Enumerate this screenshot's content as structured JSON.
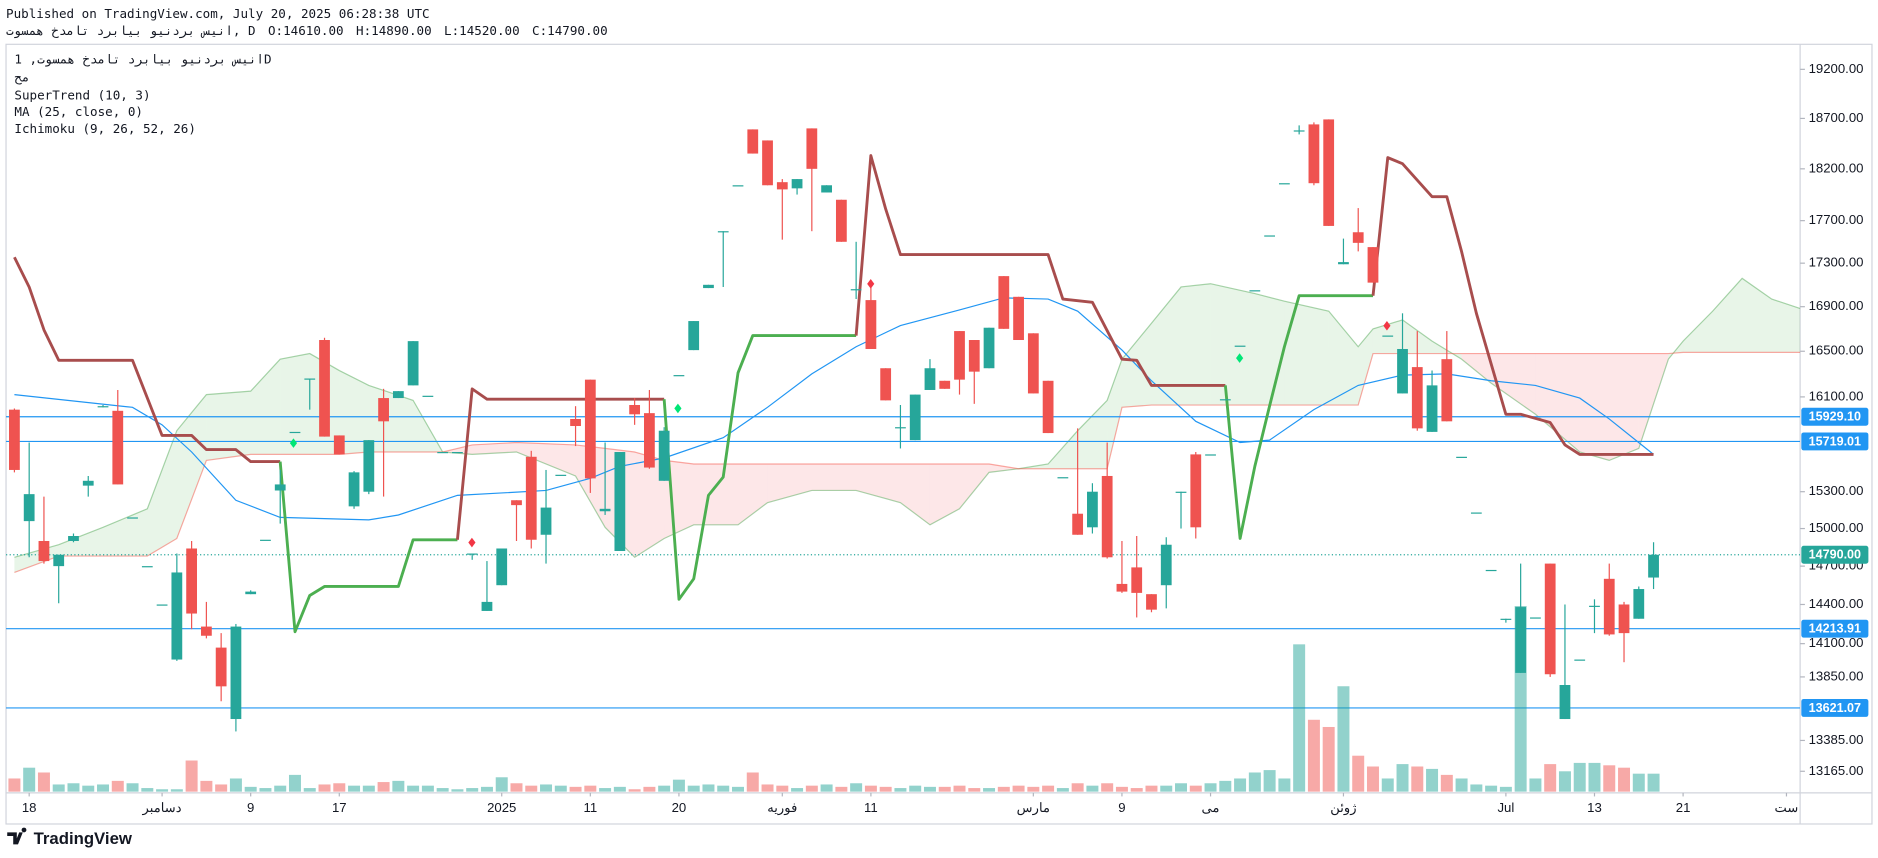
{
  "header": {
    "published": "Published on TradingView.com, July 20, 2025 06:28:38 UTC",
    "symbol_line": "انیس بردنیو بیابرد تامدخ همسوت, D",
    "ohlc": [
      "O:14610.00",
      "H:14890.00",
      "L:14520.00",
      "C:14790.00"
    ]
  },
  "legend": {
    "symbol": "انیس بردنیو بیابرد تامدخ همسوت, 1D",
    "exchange": "مح"
  },
  "footer": {
    "logo": "TradingView"
  },
  "chart_data": {
    "type": "candlestick",
    "log": true,
    "grid": false,
    "up_color": "#26a69a",
    "down_color": "#ef5350",
    "ylim": [
      13030,
      19460
    ],
    "yticks": [
      {
        "value": 19200,
        "label": "19200.00"
      },
      {
        "value": 18700,
        "label": "18700.00"
      },
      {
        "value": 18200,
        "label": "18200.00"
      },
      {
        "value": 17700,
        "label": "17700.00"
      },
      {
        "value": 17300,
        "label": "17300.00"
      },
      {
        "value": 16900,
        "label": "16900.00"
      },
      {
        "value": 16500,
        "label": "16500.00"
      },
      {
        "value": 16100,
        "label": "16100.00"
      },
      {
        "value": 15300,
        "label": "15300.00"
      },
      {
        "value": 15000,
        "label": "15000.00"
      },
      {
        "value": 14700,
        "label": "14700.00"
      },
      {
        "value": 14400,
        "label": "14400.00"
      },
      {
        "value": 14100,
        "label": "14100.00"
      },
      {
        "value": 13850,
        "label": "13850.00"
      },
      {
        "value": 13385,
        "label": "13385.00"
      },
      {
        "value": 13165,
        "label": "13165.00"
      }
    ],
    "xticks": [
      {
        "value": 1,
        "label": "18"
      },
      {
        "value": 10,
        "label": "دسامبر"
      },
      {
        "value": 16,
        "label": "9"
      },
      {
        "value": 22,
        "label": "17"
      },
      {
        "value": 33,
        "label": "2025"
      },
      {
        "value": 39,
        "label": "11"
      },
      {
        "value": 45,
        "label": "20"
      },
      {
        "value": 52,
        "label": "فوریه"
      },
      {
        "value": 58,
        "label": "11"
      },
      {
        "value": 69,
        "label": "مارس"
      },
      {
        "value": 75,
        "label": "9"
      },
      {
        "value": 81,
        "label": "می"
      },
      {
        "value": 90,
        "label": "ژوئن"
      },
      {
        "value": 101,
        "label": "Jul"
      },
      {
        "value": 107,
        "label": "13"
      },
      {
        "value": 113,
        "label": "21"
      },
      {
        "value": 120,
        "label": "ست"
      }
    ],
    "open": [
      15990,
      15060,
      14900,
      14700,
      14900,
      15350,
      16020,
      15980,
      15090,
      14700,
      14400,
      13980,
      14840,
      14230,
      14070,
      13540,
      14480,
      14910,
      15310,
      15800,
      16260,
      16600,
      15770,
      15180,
      15300,
      16090,
      16090,
      16200,
      16110,
      15630,
      15630,
      14800,
      14350,
      14550,
      15230,
      15590,
      14950,
      15440,
      15910,
      16250,
      15140,
      14820,
      16030,
      15960,
      15390,
      16290,
      16510,
      17070,
      17600,
      18040,
      18590,
      18480,
      18070,
      18010,
      18600,
      17970,
      17900,
      17060,
      16960,
      16350,
      15840,
      15730,
      16160,
      16240,
      16680,
      16600,
      16350,
      17180,
      16990,
      16660,
      16240,
      15420,
      15120,
      15010,
      15430,
      14560,
      14690,
      14480,
      14550,
      15300,
      15610,
      15610,
      16080,
      16550,
      17050,
      17560,
      18060,
      18580,
      18640,
      18690,
      17290,
      17590,
      17450,
      16640,
      16130,
      16360,
      15800,
      16430,
      15590,
      15130,
      14670,
      14290,
      13880,
      14300,
      14720,
      13540,
      13980,
      14390,
      14600,
      14400,
      14290,
      14610
    ],
    "high": [
      16000,
      15710,
      15260,
      14790,
      14960,
      15430,
      16030,
      16160,
      15090,
      14700,
      14400,
      14800,
      14900,
      14420,
      14180,
      14250,
      14510,
      14910,
      15480,
      15800,
      16260,
      16620,
      15770,
      15470,
      15730,
      16170,
      16150,
      16590,
      16110,
      15630,
      15630,
      14800,
      14740,
      14840,
      15230,
      15640,
      15480,
      15440,
      16020,
      16250,
      15710,
      15630,
      16090,
      16160,
      15840,
      16290,
      16770,
      17100,
      17600,
      18040,
      18590,
      18480,
      18100,
      18100,
      18600,
      18040,
      17900,
      17500,
      17080,
      16350,
      16030,
      16120,
      16430,
      16240,
      16680,
      16600,
      16710,
      17180,
      16990,
      16660,
      16240,
      15420,
      15830,
      15370,
      15710,
      14900,
      14940,
      14480,
      14930,
      15300,
      15630,
      15610,
      16080,
      16550,
      17050,
      17560,
      18060,
      18630,
      18660,
      18690,
      17530,
      17820,
      17450,
      16640,
      16840,
      16680,
      16330,
      16680,
      15590,
      15130,
      14670,
      14290,
      14720,
      14300,
      14720,
      14400,
      13980,
      14440,
      14720,
      14420,
      14540,
      14890
    ],
    "low": [
      15460,
      14770,
      14720,
      14410,
      14890,
      15260,
      16010,
      15360,
      15090,
      14700,
      14400,
      13970,
      14210,
      14140,
      13670,
      13450,
      14480,
      14910,
      15040,
      15800,
      15990,
      15760,
      15610,
      15160,
      15280,
      15260,
      16090,
      16200,
      16110,
      15630,
      15630,
      14750,
      14350,
      14550,
      14900,
      14840,
      14720,
      15440,
      15680,
      15290,
      15110,
      14820,
      15860,
      15490,
      15390,
      16290,
      16510,
      17070,
      17080,
      18040,
      18350,
      18040,
      17520,
      17950,
      17600,
      17970,
      17500,
      16970,
      16520,
      16070,
      15660,
      15730,
      16160,
      16170,
      16120,
      16040,
      16350,
      16700,
      16600,
      16130,
      15790,
      15420,
      14950,
      14960,
      14760,
      14490,
      14300,
      14340,
      14370,
      15000,
      14920,
      15610,
      16080,
      16550,
      17050,
      17560,
      18060,
      18540,
      18040,
      17650,
      17290,
      17410,
      17120,
      16640,
      16130,
      15810,
      15800,
      15890,
      15590,
      15130,
      14670,
      14260,
      13880,
      14300,
      13850,
      13540,
      13980,
      14180,
      14160,
      13960,
      14290,
      14520
    ],
    "close": [
      15480,
      15280,
      14740,
      14790,
      14940,
      15390,
      16020,
      15360,
      15090,
      14700,
      14400,
      14650,
      14330,
      14160,
      13780,
      14230,
      14500,
      14910,
      15360,
      15800,
      16260,
      15760,
      15610,
      15460,
      15730,
      15890,
      16150,
      16590,
      16110,
      15630,
      15630,
      14800,
      14420,
      14840,
      15190,
      14910,
      15170,
      15440,
      15850,
      15410,
      15160,
      15630,
      15950,
      15500,
      15810,
      16290,
      16770,
      17100,
      17600,
      18040,
      18350,
      18040,
      18000,
      18100,
      18200,
      18040,
      17500,
      17060,
      16520,
      16070,
      15840,
      16120,
      16350,
      16170,
      16250,
      16320,
      16710,
      16700,
      16600,
      16130,
      15790,
      15420,
      14950,
      15300,
      14770,
      14500,
      14490,
      14360,
      14870,
      15300,
      15010,
      15610,
      16080,
      16550,
      17050,
      17560,
      18060,
      18580,
      18060,
      17650,
      17310,
      17490,
      17120,
      16640,
      16520,
      15830,
      16200,
      15890,
      15590,
      15130,
      14670,
      14290,
      14380,
      14300,
      13870,
      13790,
      13980,
      14390,
      14170,
      14180,
      14520,
      14790
    ],
    "volume": [
      11,
      20,
      16,
      6,
      7,
      5,
      6,
      9,
      7,
      3,
      2,
      2,
      26,
      9,
      6,
      11,
      4,
      3,
      5,
      14,
      3,
      6,
      7,
      5,
      5,
      8,
      9,
      5,
      5,
      3,
      2,
      3,
      4,
      12,
      7,
      5,
      6,
      5,
      4,
      5,
      3,
      4,
      2,
      4,
      5,
      10,
      5,
      6,
      5,
      4,
      16,
      6,
      5,
      3,
      5,
      6,
      4,
      7,
      5,
      4,
      3,
      5,
      4,
      4,
      5,
      3,
      3,
      4,
      5,
      4,
      5,
      3,
      7,
      5,
      7,
      4,
      3,
      5,
      5,
      7,
      5,
      7,
      9,
      11,
      16,
      18,
      11,
      123,
      60,
      54,
      88,
      30,
      21,
      11,
      23,
      21,
      19,
      14,
      11,
      6,
      5,
      4,
      155,
      11,
      23,
      17,
      24,
      24,
      22,
      20,
      15,
      15
    ],
    "levels": [
      {
        "value": 15929.1,
        "label": "15929.10",
        "color": "#2196f3"
      },
      {
        "value": 15719.01,
        "label": "15719.01",
        "color": "#2196f3"
      },
      {
        "value": 14213.91,
        "label": "14213.91",
        "color": "#2196f3"
      },
      {
        "value": 13621.07,
        "label": "13621.07",
        "color": "#2196f3"
      }
    ],
    "last_price": {
      "value": 14790,
      "label": "14790.00",
      "color": "#26a69a"
    },
    "supertrend": {
      "label": "SuperTrend (10, 3)",
      "segments": [
        {
          "color": "#a84d4d",
          "x": [
            0,
            1,
            2,
            3,
            8,
            10,
            12,
            13,
            15,
            16,
            18
          ],
          "values": [
            17355,
            17080,
            16690,
            16420,
            16420,
            15770,
            15770,
            15650,
            15650,
            15550,
            15550
          ]
        },
        {
          "color": "#4caf50",
          "x": [
            18,
            19,
            20,
            21,
            26,
            27,
            30
          ],
          "values": [
            15550,
            14190,
            14470,
            14540,
            14540,
            14910,
            14910
          ]
        },
        {
          "color": "#a84d4d",
          "x": [
            30,
            31,
            32,
            44
          ],
          "values": [
            14910,
            16170,
            16080,
            16080
          ]
        },
        {
          "color": "#4caf50",
          "x": [
            44,
            45,
            46,
            47,
            48,
            49,
            50,
            57
          ],
          "values": [
            16080,
            14440,
            14600,
            15270,
            15420,
            16310,
            16640,
            16640
          ]
        },
        {
          "color": "#a84d4d",
          "x": [
            57,
            58,
            59,
            60,
            70,
            71,
            73,
            75,
            76,
            77,
            82
          ],
          "values": [
            16640,
            18330,
            17810,
            17380,
            17380,
            16970,
            16940,
            16430,
            16420,
            16200,
            16200
          ]
        },
        {
          "color": "#4caf50",
          "x": [
            82,
            83,
            84,
            85,
            86,
            87,
            92
          ],
          "values": [
            16200,
            14920,
            15510,
            16020,
            16540,
            17000,
            17000
          ]
        },
        {
          "color": "#a84d4d",
          "x": [
            92,
            93,
            94,
            96,
            97,
            98,
            99,
            101,
            102,
            104,
            105,
            106,
            111
          ],
          "values": [
            17000,
            18310,
            18250,
            17930,
            17930,
            17410,
            16840,
            15950,
            15950,
            15880,
            15690,
            15610,
            15610
          ]
        }
      ]
    },
    "ma": {
      "label": "MA (25, close, 0)",
      "color": "#2196f3",
      "x": [
        0,
        8,
        10,
        12,
        15,
        18,
        24,
        26,
        30,
        33,
        36,
        39,
        41,
        44,
        48,
        51,
        54,
        57,
        60,
        64,
        67,
        70,
        72,
        75,
        77,
        80,
        83,
        85,
        88,
        91,
        94,
        97,
        100,
        103,
        106,
        108,
        111
      ],
      "values": [
        16120,
        16010,
        15860,
        15630,
        15230,
        15090,
        15070,
        15110,
        15270,
        15290,
        15310,
        15410,
        15510,
        15580,
        15750,
        16010,
        16300,
        16540,
        16730,
        16870,
        16980,
        16970,
        16860,
        16510,
        16240,
        15890,
        15710,
        15730,
        15990,
        16200,
        16290,
        16300,
        16240,
        16200,
        16090,
        15910,
        15610
      ]
    },
    "ichimoku": {
      "label": "Ichimoku (9, 26, 52, 26)",
      "fill_up": "rgba(76,175,80,0.13)",
      "fill_down": "rgba(242,54,69,0.12)",
      "x": [
        0,
        3,
        6,
        9,
        11,
        13,
        16,
        18,
        20,
        22,
        24,
        27,
        29,
        31,
        34,
        38,
        40,
        42,
        44,
        46,
        49,
        51,
        54,
        57,
        60,
        62,
        64,
        66,
        68,
        70,
        72,
        74,
        75,
        77,
        79,
        81,
        84,
        86,
        89,
        91,
        92,
        94,
        96,
        98,
        100,
        103,
        106,
        108,
        110,
        112,
        113,
        115,
        117,
        119,
        121
      ],
      "span_a": {
        "color": "rgba(67,160,71,0.45)",
        "values": [
          14770,
          14870,
          15010,
          15160,
          15810,
          16120,
          16150,
          16430,
          16480,
          16330,
          16200,
          16070,
          15630,
          15610,
          15630,
          15430,
          15010,
          14770,
          14920,
          15030,
          15030,
          15210,
          15310,
          15310,
          15210,
          15030,
          15160,
          15460,
          15490,
          15530,
          15810,
          16070,
          16430,
          16750,
          17080,
          17110,
          17020,
          16950,
          16860,
          16540,
          16700,
          16780,
          16590,
          16430,
          16220,
          15950,
          15630,
          15560,
          15660,
          16430,
          16590,
          16860,
          17160,
          16970,
          16880
        ]
      },
      "span_b": {
        "color": "rgba(244,67,54,0.45)",
        "values": [
          14650,
          14780,
          14780,
          14780,
          14920,
          15560,
          15610,
          15610,
          15610,
          15610,
          15630,
          15630,
          15630,
          15690,
          15710,
          15690,
          15660,
          15630,
          15560,
          15530,
          15530,
          15530,
          15530,
          15530,
          15530,
          15530,
          15530,
          15530,
          15490,
          15490,
          15490,
          15490,
          16010,
          16030,
          16030,
          16030,
          16030,
          16030,
          16030,
          16030,
          16480,
          16480,
          16480,
          16480,
          16480,
          16480,
          16480,
          16480,
          16480,
          16480,
          16490,
          16490,
          16490,
          16490,
          16490
        ]
      }
    }
  }
}
